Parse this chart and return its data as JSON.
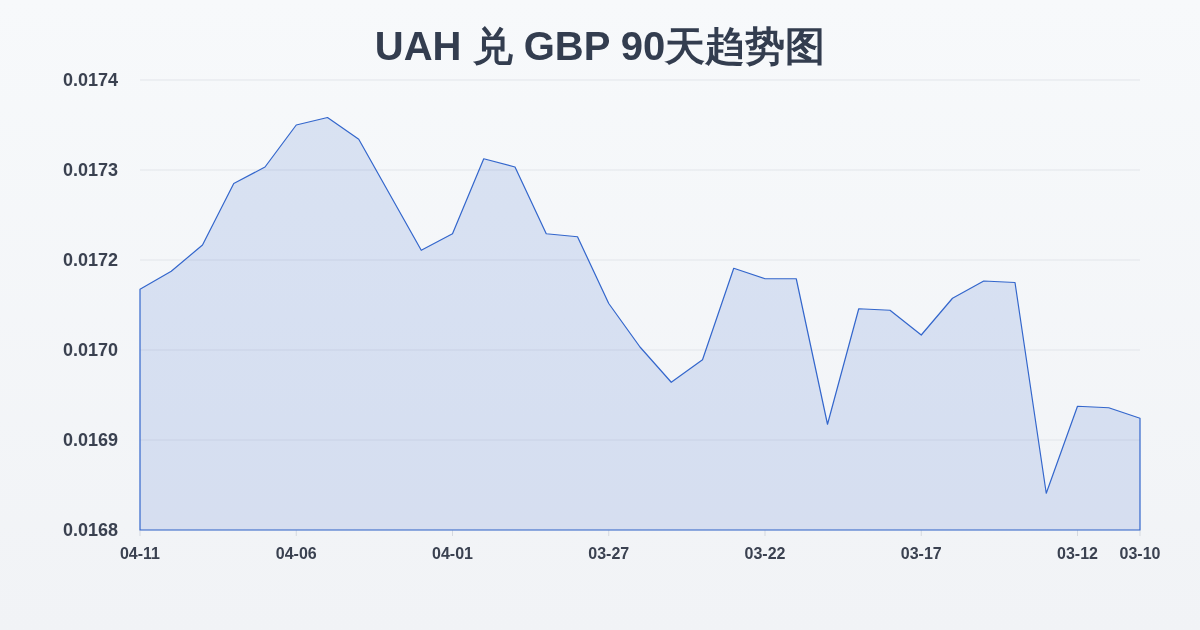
{
  "chart_data": {
    "type": "area",
    "title": "UAH 兑 GBP 90天趋势图",
    "categories": [
      "04-11",
      null,
      null,
      null,
      null,
      "04-06",
      null,
      null,
      null,
      null,
      "04-01",
      null,
      null,
      null,
      null,
      "03-27",
      null,
      null,
      null,
      null,
      "03-22",
      null,
      null,
      null,
      null,
      "03-17",
      null,
      null,
      null,
      null,
      "03-12",
      null,
      "03-10"
    ],
    "series": [
      {
        "color": "#3366cc",
        "values": [
          0.017121,
          0.017145,
          0.01718,
          0.017262,
          0.017284,
          0.01734,
          0.01735,
          0.017321,
          0.017247,
          0.017173,
          0.017195,
          0.017295,
          0.017284,
          0.017195,
          0.017191,
          0.017102,
          0.017044,
          0.016997,
          0.017027,
          0.017149,
          0.017135,
          0.017135,
          0.016941,
          0.017095,
          0.017093,
          0.01706,
          0.017109,
          0.017132,
          0.01713,
          0.016849,
          0.016965,
          0.016963,
          0.016949
        ]
      }
    ],
    "ylim": [
      0.0168,
      0.0174
    ],
    "yticks": [
      0.0174,
      {
        "value": 0.01728,
        "label": "0.0173"
      },
      {
        "value": 0.01716,
        "label": "0.0172"
      },
      {
        "value": 0.01704,
        "label": "0.0170"
      },
      {
        "value": 0.01692,
        "label": "0.0169"
      },
      0.0168
    ],
    "grid": "y"
  }
}
